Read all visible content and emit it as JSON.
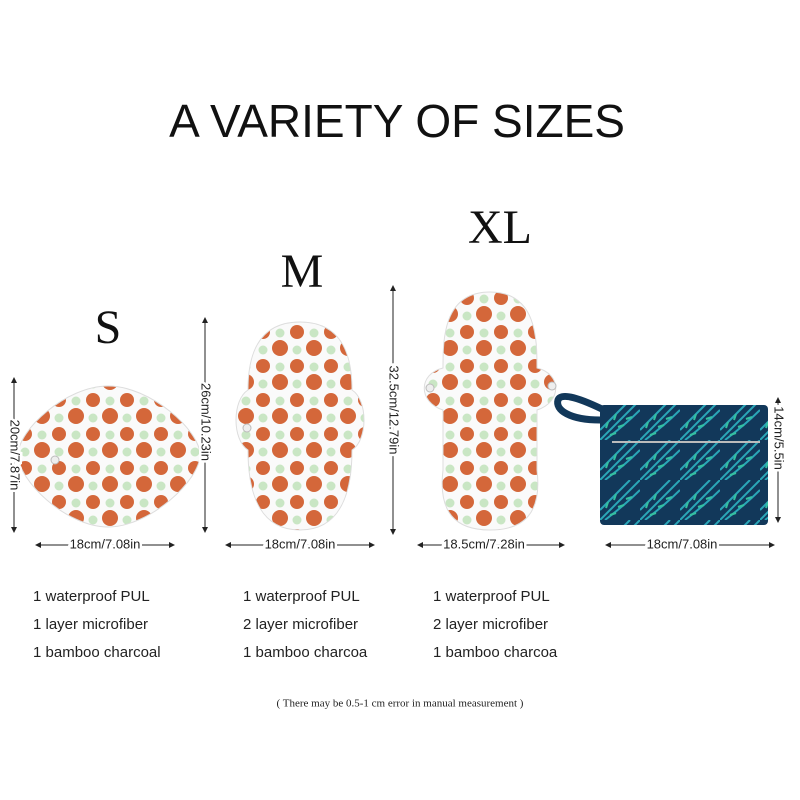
{
  "header": {
    "title": "A VARIETY OF SIZES"
  },
  "products": [
    {
      "size": "S",
      "width": "18cm/7.08in",
      "height": "20cm/7.87in",
      "features": [
        "1 waterproof PUL",
        "1 layer microfiber",
        "1 bamboo charcoal"
      ]
    },
    {
      "size": "M",
      "width": "18cm/7.08in",
      "height": "26cm/10.23in",
      "features": [
        "1 waterproof PUL",
        "2 layer microfiber",
        "1 bamboo charcoa"
      ]
    },
    {
      "size": "XL",
      "width": "18.5cm/7.28in",
      "height": "32.5cm/12.79in",
      "features": [
        "1 waterproof PUL",
        "2 layer microfiber",
        "1 bamboo charcoa"
      ]
    }
  ],
  "bag": {
    "width": "18cm/7.08in",
    "height": "14cm/5.5in"
  },
  "footnote": "( There may be 0.5-1 cm error in manual measurement )"
}
